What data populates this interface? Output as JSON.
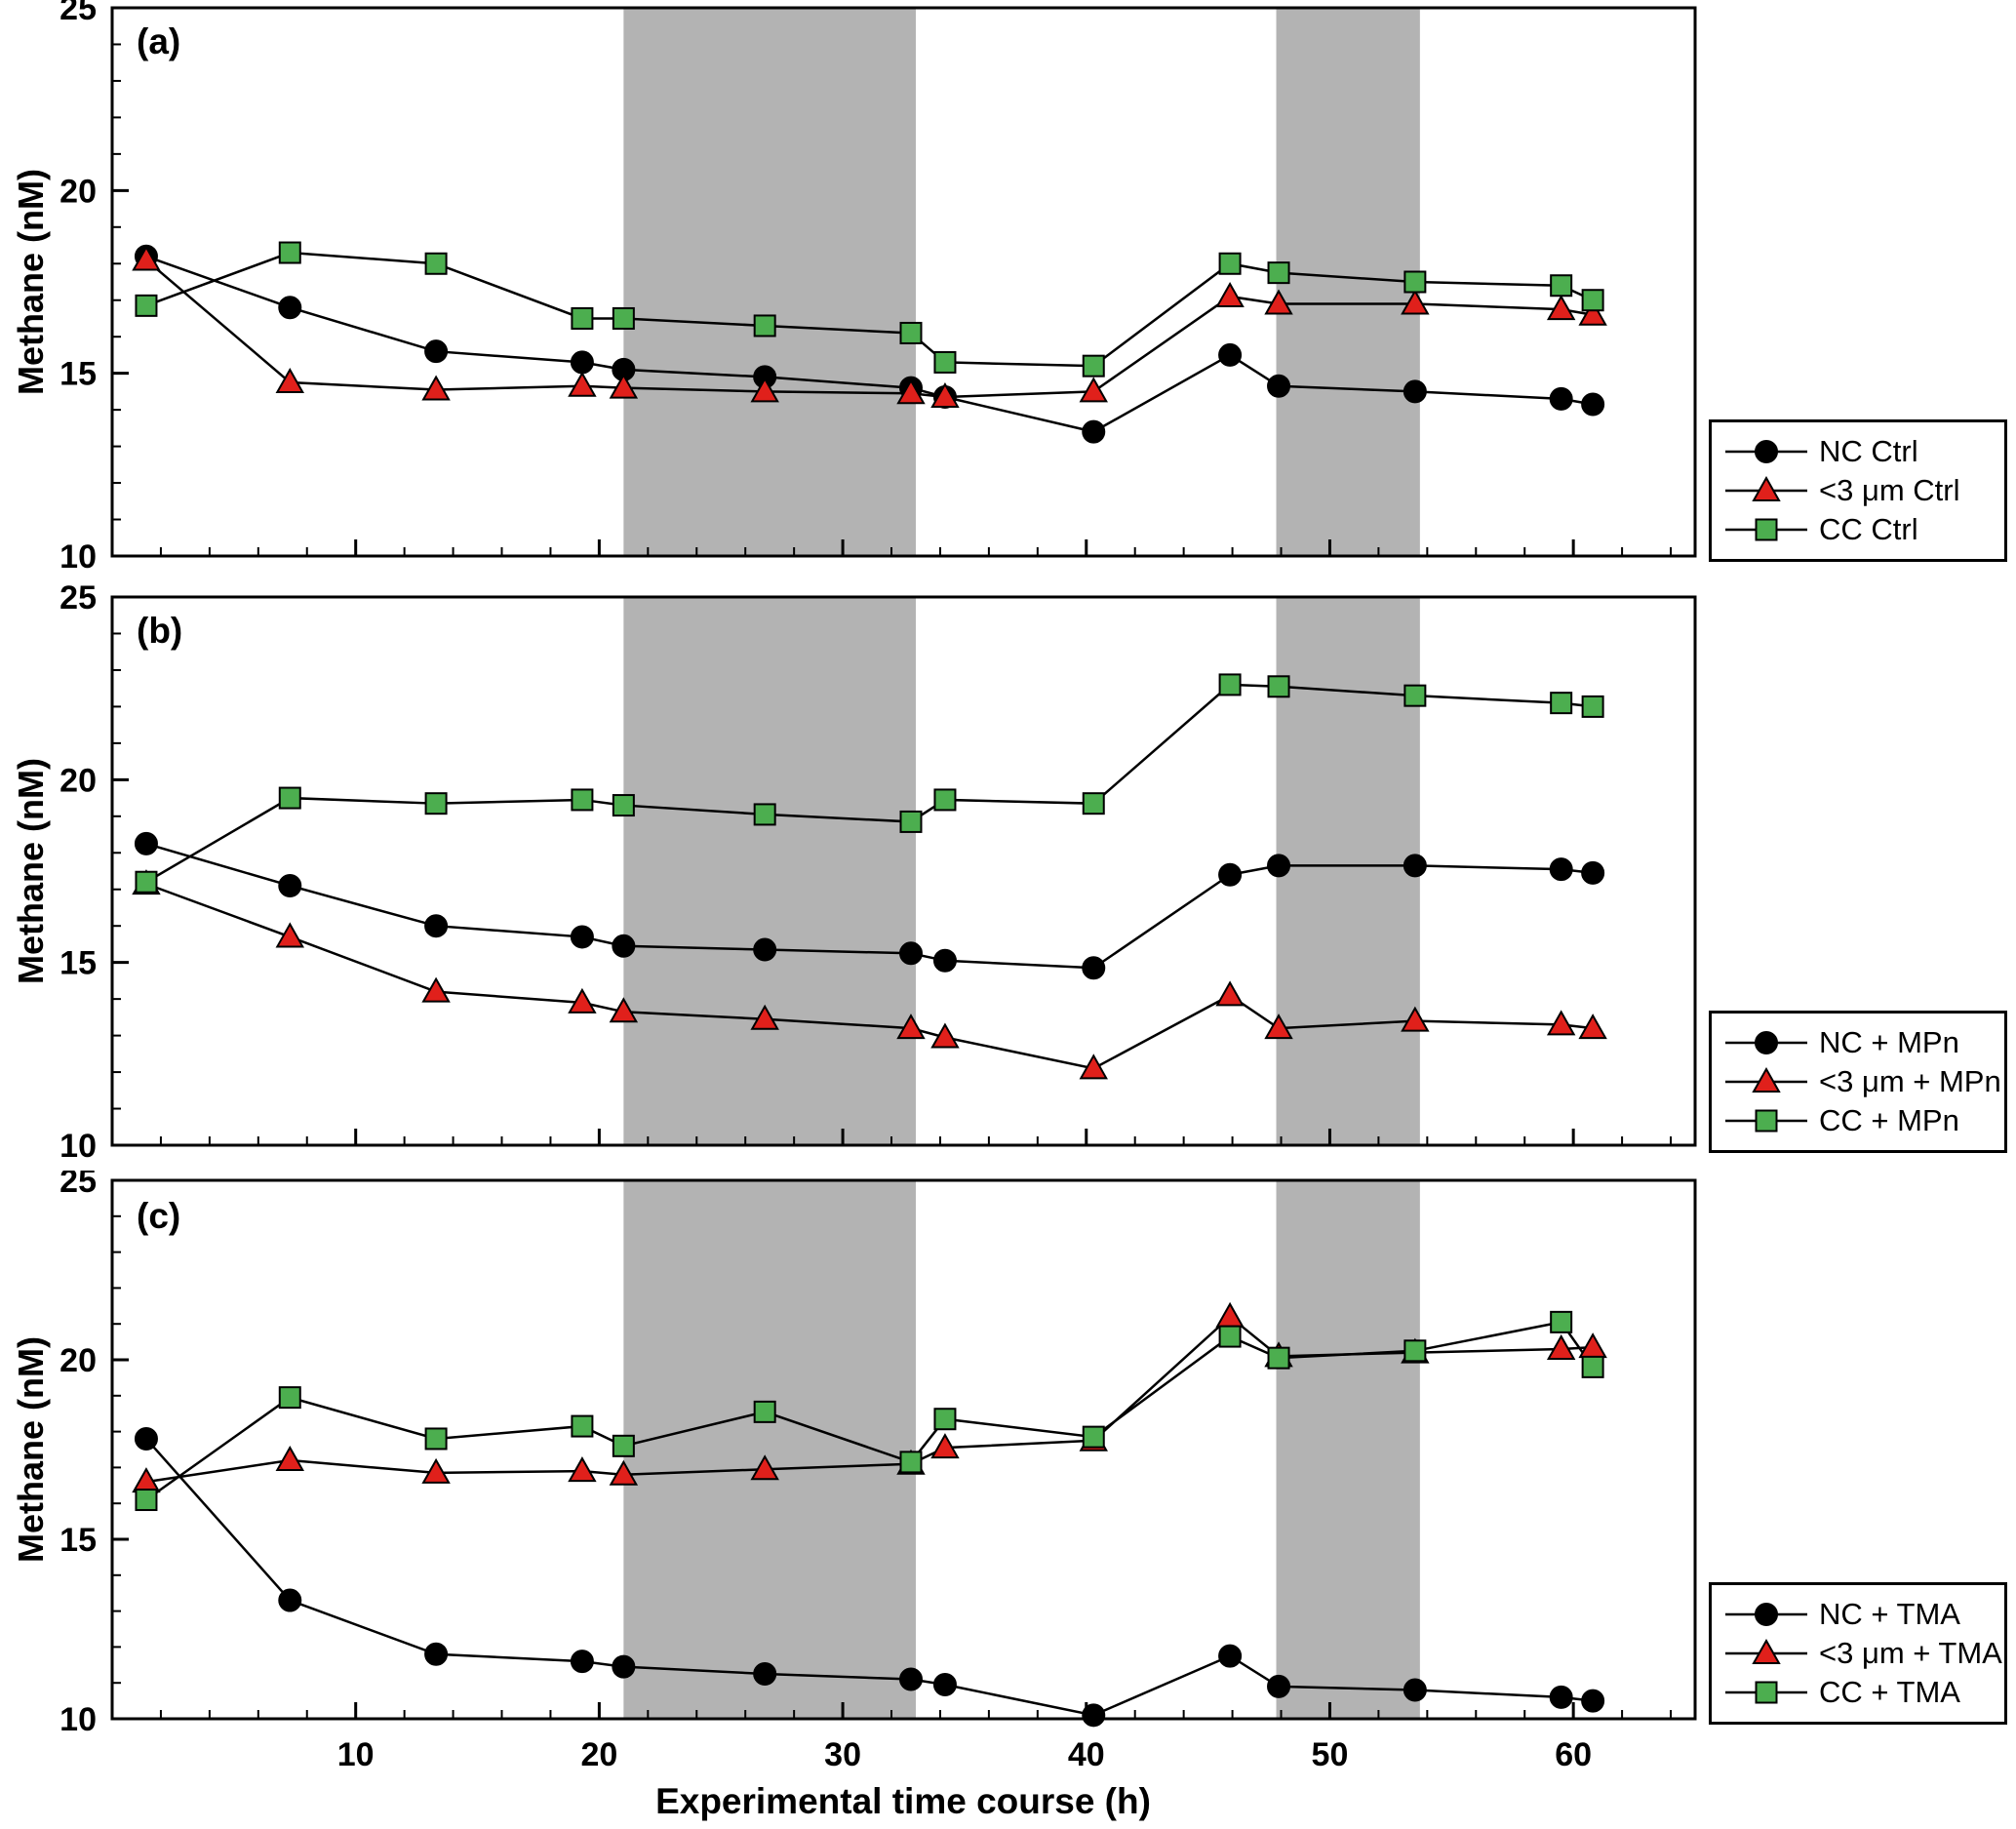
{
  "figure": {
    "xlabel": "Experimental time course (h)",
    "ylabel": "Methane (nM)"
  },
  "chart_data": [
    {
      "type": "line",
      "panel": "(a)",
      "ylabel": "Methane (nM)",
      "xlim": [
        0,
        65
      ],
      "ylim": [
        10,
        25
      ],
      "xticks": [
        10,
        20,
        30,
        40,
        50,
        60
      ],
      "yticks": [
        10,
        15,
        20,
        25
      ],
      "x_minor_step": 2,
      "y_minor_step": 1,
      "band_color": "#b3b3b3",
      "shaded_bands": [
        [
          21,
          33
        ],
        [
          47.8,
          53.7
        ]
      ],
      "x": [
        1.4,
        7.3,
        13.3,
        19.3,
        21.0,
        26.8,
        32.8,
        34.2,
        40.3,
        45.9,
        47.9,
        53.5,
        59.5,
        60.8
      ],
      "series": [
        {
          "name": "NC Ctrl",
          "marker": "circle",
          "color": "#000000",
          "values": [
            18.2,
            16.8,
            15.6,
            15.3,
            15.1,
            14.9,
            14.6,
            14.35,
            13.4,
            15.5,
            14.65,
            14.5,
            14.3,
            14.15
          ]
        },
        {
          "name": "<3 μm Ctrl",
          "marker": "triangle",
          "color": "#e0201b",
          "values": [
            18.1,
            14.75,
            14.55,
            14.65,
            14.6,
            14.5,
            14.45,
            14.35,
            14.5,
            17.1,
            16.9,
            16.9,
            16.75,
            16.6
          ]
        },
        {
          "name": "CC Ctrl",
          "marker": "square",
          "color": "#4cae4f",
          "values": [
            16.85,
            18.3,
            18.0,
            16.5,
            16.5,
            16.3,
            16.1,
            15.3,
            15.2,
            18.0,
            17.75,
            17.5,
            17.4,
            17.0
          ]
        }
      ]
    },
    {
      "type": "line",
      "panel": "(b)",
      "ylabel": "Methane (nM)",
      "xlim": [
        0,
        65
      ],
      "ylim": [
        10,
        25
      ],
      "xticks": [
        10,
        20,
        30,
        40,
        50,
        60
      ],
      "yticks": [
        10,
        15,
        20,
        25
      ],
      "x_minor_step": 2,
      "y_minor_step": 1,
      "band_color": "#b3b3b3",
      "shaded_bands": [
        [
          21,
          33
        ],
        [
          47.8,
          53.7
        ]
      ],
      "x": [
        1.4,
        7.3,
        13.3,
        19.3,
        21.0,
        26.8,
        32.8,
        34.2,
        40.3,
        45.9,
        47.9,
        53.5,
        59.5,
        60.8
      ],
      "series": [
        {
          "name": "NC + MPn",
          "marker": "circle",
          "color": "#000000",
          "values": [
            18.25,
            17.1,
            16.0,
            15.7,
            15.45,
            15.35,
            15.25,
            15.05,
            14.85,
            17.4,
            17.65,
            17.65,
            17.55,
            17.45
          ]
        },
        {
          "name": "<3 μm + MPn",
          "marker": "triangle",
          "color": "#e0201b",
          "values": [
            17.15,
            15.7,
            14.2,
            13.9,
            13.65,
            13.45,
            13.2,
            12.95,
            12.1,
            14.1,
            13.2,
            13.4,
            13.3,
            13.2
          ]
        },
        {
          "name": "CC + MPn",
          "marker": "square",
          "color": "#4cae4f",
          "values": [
            17.2,
            19.5,
            19.35,
            19.45,
            19.3,
            19.05,
            18.85,
            19.45,
            19.35,
            22.6,
            22.55,
            22.3,
            22.1,
            22.0
          ]
        }
      ]
    },
    {
      "type": "line",
      "panel": "(c)",
      "ylabel": "Methane (nM)",
      "xlim": [
        0,
        65
      ],
      "ylim": [
        10,
        25
      ],
      "xticks": [
        10,
        20,
        30,
        40,
        50,
        60
      ],
      "yticks": [
        10,
        15,
        20,
        25
      ],
      "x_minor_step": 2,
      "y_minor_step": 1,
      "band_color": "#b3b3b3",
      "shaded_bands": [
        [
          21,
          33
        ],
        [
          47.8,
          53.7
        ]
      ],
      "x": [
        1.4,
        7.3,
        13.3,
        19.3,
        21.0,
        26.8,
        32.8,
        34.2,
        40.3,
        45.9,
        47.9,
        53.5,
        59.5,
        60.8
      ],
      "series": [
        {
          "name": "NC + TMA",
          "marker": "circle",
          "color": "#000000",
          "values": [
            17.8,
            13.3,
            11.8,
            11.6,
            11.45,
            11.25,
            11.1,
            10.95,
            10.1,
            11.75,
            10.9,
            10.8,
            10.6,
            10.5
          ]
        },
        {
          "name": "<3 μm + TMA",
          "marker": "triangle",
          "color": "#e0201b",
          "values": [
            16.6,
            17.2,
            16.85,
            16.9,
            16.8,
            16.95,
            17.1,
            17.55,
            17.75,
            21.2,
            20.1,
            20.2,
            20.3,
            20.35
          ]
        },
        {
          "name": "CC + TMA",
          "marker": "square",
          "color": "#4cae4f",
          "values": [
            16.1,
            18.95,
            17.8,
            18.15,
            17.6,
            18.55,
            17.15,
            18.35,
            17.85,
            20.65,
            20.05,
            20.25,
            21.05,
            19.8
          ]
        }
      ]
    }
  ]
}
